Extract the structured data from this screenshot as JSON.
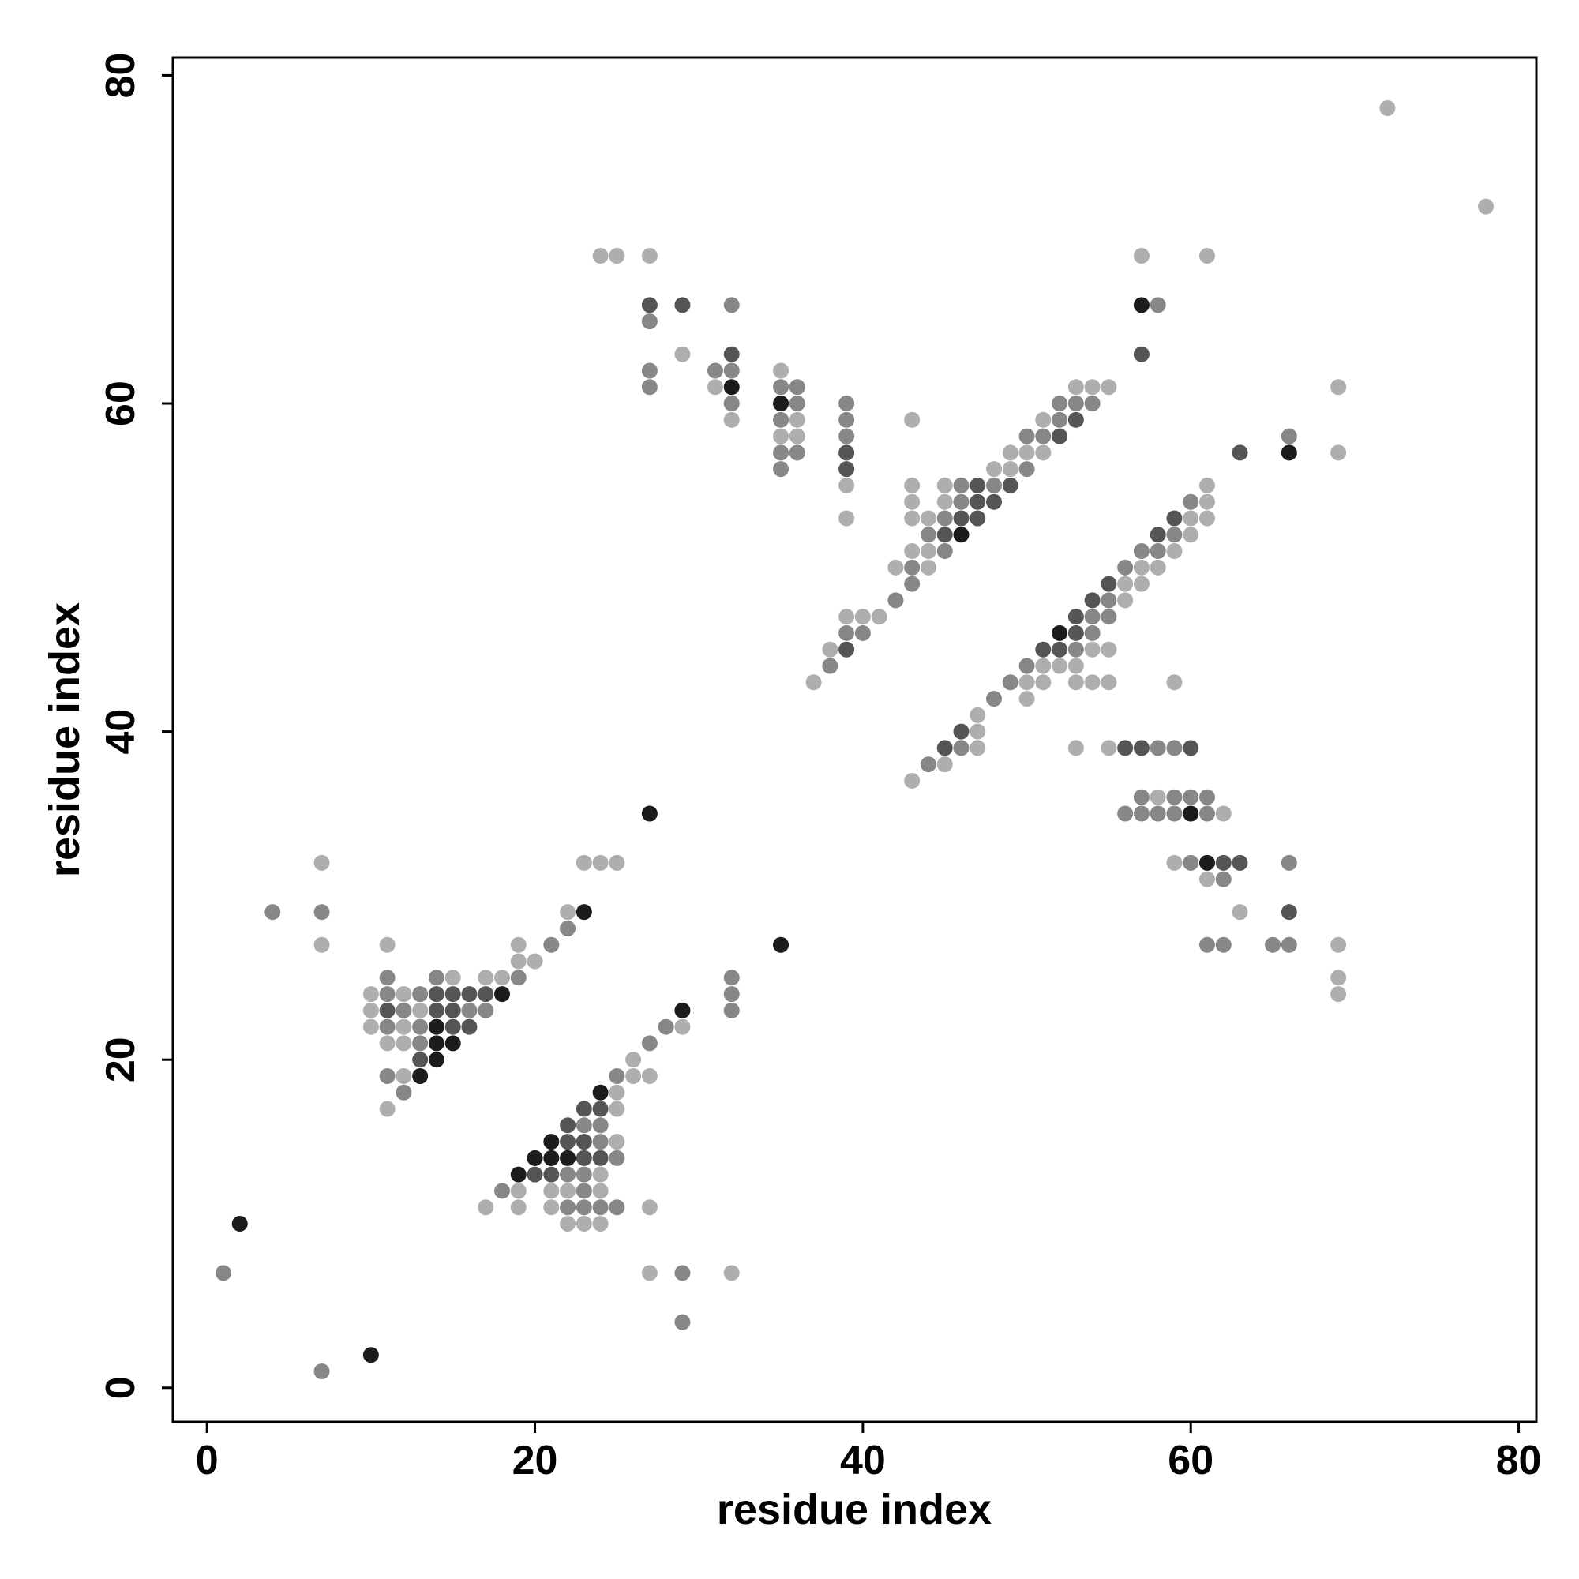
{
  "chart_data": {
    "type": "scatter",
    "xlabel": "residue index",
    "ylabel": "residue index",
    "xlim": [
      -2.08,
      81.08
    ],
    "ylim": [
      -2.08,
      81.08
    ],
    "xticks": [
      0,
      20,
      40,
      60,
      80
    ],
    "yticks": [
      0,
      20,
      40,
      60,
      80
    ],
    "series": [
      {
        "color": "#aeaeae",
        "x": [
          7,
          7,
          10,
          10,
          10,
          11,
          11,
          11,
          12,
          12,
          12,
          12,
          13,
          15,
          17,
          18,
          19,
          19,
          20,
          22,
          23,
          24,
          25,
          17,
          19,
          19,
          21,
          21,
          22,
          22,
          23,
          24,
          24,
          24,
          25,
          25,
          25,
          26,
          26,
          27,
          27,
          27,
          29,
          32,
          24,
          25,
          27,
          29,
          31,
          32,
          35,
          35,
          36,
          36,
          39,
          39,
          37,
          38,
          39,
          40,
          41,
          42,
          43,
          43,
          43,
          43,
          43,
          44,
          44,
          44,
          45,
          45,
          48,
          49,
          49,
          50,
          51,
          51,
          53,
          54,
          55,
          43,
          45,
          47,
          47,
          47,
          50,
          50,
          51,
          51,
          52,
          53,
          53,
          53,
          54,
          54,
          55,
          55,
          55,
          56,
          56,
          57,
          57,
          58,
          58,
          59,
          59,
          59,
          60,
          60,
          61,
          61,
          61,
          61,
          62,
          63,
          69,
          69,
          69,
          69,
          69,
          57,
          61,
          72,
          78
        ],
        "y": [
          32,
          27,
          24,
          23,
          22,
          27,
          21,
          17,
          24,
          22,
          21,
          19,
          23,
          25,
          25,
          25,
          27,
          26,
          26,
          29,
          32,
          32,
          32,
          11,
          12,
          11,
          12,
          11,
          12,
          10,
          10,
          13,
          12,
          10,
          18,
          17,
          15,
          20,
          19,
          19,
          11,
          7,
          22,
          7,
          69,
          69,
          69,
          63,
          61,
          59,
          62,
          58,
          59,
          58,
          55,
          53,
          43,
          45,
          47,
          47,
          47,
          50,
          59,
          55,
          54,
          53,
          51,
          53,
          51,
          50,
          55,
          54,
          56,
          57,
          56,
          57,
          59,
          57,
          61,
          61,
          61,
          37,
          38,
          41,
          40,
          39,
          43,
          42,
          44,
          43,
          44,
          44,
          43,
          39,
          45,
          43,
          45,
          43,
          39,
          49,
          48,
          50,
          49,
          50,
          36,
          51,
          43,
          32,
          53,
          52,
          55,
          54,
          53,
          31,
          35,
          29,
          61,
          57,
          27,
          25,
          24,
          69,
          69,
          78,
          72
        ]
      },
      {
        "color": "#878787",
        "x": [
          1,
          7,
          4,
          7,
          11,
          11,
          11,
          11,
          12,
          12,
          13,
          13,
          13,
          14,
          16,
          17,
          19,
          21,
          22,
          18,
          22,
          22,
          23,
          23,
          23,
          23,
          24,
          24,
          24,
          25,
          25,
          25,
          27,
          28,
          29,
          29,
          32,
          32,
          32,
          27,
          27,
          27,
          31,
          32,
          32,
          32,
          35,
          35,
          35,
          35,
          36,
          36,
          36,
          39,
          39,
          39,
          38,
          39,
          40,
          42,
          43,
          43,
          44,
          45,
          45,
          46,
          46,
          48,
          50,
          50,
          51,
          52,
          52,
          53,
          54,
          44,
          46,
          48,
          49,
          50,
          53,
          54,
          54,
          55,
          55,
          56,
          56,
          57,
          57,
          57,
          58,
          58,
          58,
          59,
          59,
          59,
          59,
          60,
          60,
          60,
          61,
          61,
          61,
          62,
          62,
          65,
          66,
          66,
          66,
          58
        ],
        "y": [
          7,
          1,
          29,
          29,
          25,
          24,
          22,
          19,
          23,
          18,
          24,
          22,
          21,
          25,
          23,
          23,
          25,
          27,
          28,
          12,
          13,
          11,
          16,
          13,
          12,
          11,
          16,
          15,
          11,
          19,
          14,
          11,
          21,
          22,
          7,
          4,
          25,
          24,
          23,
          65,
          62,
          61,
          62,
          66,
          62,
          60,
          61,
          59,
          57,
          56,
          61,
          60,
          57,
          60,
          59,
          58,
          44,
          46,
          46,
          48,
          50,
          49,
          52,
          53,
          51,
          55,
          54,
          55,
          58,
          56,
          58,
          60,
          59,
          60,
          60,
          38,
          39,
          42,
          43,
          44,
          45,
          47,
          46,
          48,
          47,
          50,
          35,
          51,
          36,
          35,
          51,
          39,
          35,
          52,
          39,
          36,
          35,
          54,
          36,
          32,
          36,
          35,
          27,
          31,
          27,
          27,
          58,
          32,
          27,
          66
        ]
      },
      {
        "color": "#555555",
        "x": [
          11,
          13,
          14,
          14,
          15,
          15,
          15,
          16,
          16,
          17,
          20,
          21,
          22,
          22,
          23,
          23,
          23,
          24,
          24,
          27,
          29,
          32,
          39,
          39,
          39,
          45,
          46,
          47,
          47,
          47,
          48,
          49,
          52,
          53,
          45,
          46,
          51,
          52,
          53,
          53,
          54,
          55,
          56,
          57,
          58,
          59,
          60,
          62,
          63,
          63,
          66,
          57
        ],
        "y": [
          23,
          20,
          24,
          23,
          24,
          23,
          22,
          24,
          22,
          24,
          13,
          13,
          16,
          15,
          17,
          15,
          14,
          17,
          14,
          66,
          66,
          63,
          57,
          56,
          45,
          52,
          53,
          55,
          54,
          53,
          54,
          55,
          58,
          59,
          39,
          40,
          45,
          45,
          47,
          46,
          48,
          49,
          39,
          39,
          52,
          53,
          39,
          32,
          32,
          57,
          29,
          63
        ]
      },
      {
        "color": "#1c1c1c",
        "x": [
          2,
          10,
          13,
          14,
          14,
          14,
          15,
          18,
          19,
          20,
          21,
          21,
          22,
          24,
          29,
          23,
          27,
          35,
          32,
          35,
          46,
          52,
          60,
          61,
          66,
          57
        ],
        "y": [
          10,
          2,
          19,
          22,
          21,
          20,
          21,
          24,
          13,
          14,
          15,
          14,
          14,
          18,
          23,
          29,
          35,
          27,
          61,
          60,
          52,
          46,
          35,
          32,
          57,
          66
        ]
      }
    ]
  }
}
